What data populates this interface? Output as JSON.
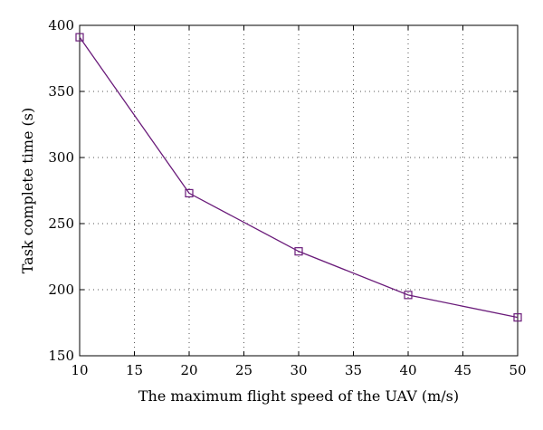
{
  "chart_data": {
    "type": "line",
    "xlabel": "The maximum flight speed of the UAV (m/s)",
    "ylabel": "Task complete time (s)",
    "xlim": [
      10,
      50
    ],
    "ylim": [
      150,
      400
    ],
    "x_ticks": [
      10,
      15,
      20,
      25,
      30,
      35,
      40,
      45,
      50
    ],
    "y_ticks": [
      150,
      200,
      250,
      300,
      350,
      400
    ],
    "x_tick_labels": [
      "10",
      "15",
      "20",
      "25",
      "30",
      "35",
      "40",
      "45",
      "50"
    ],
    "y_tick_labels": [
      "150",
      "200",
      "250",
      "300",
      "350",
      "400"
    ],
    "grid": true,
    "grid_style": "dotted",
    "series": [
      {
        "x": [
          10,
          20,
          30,
          40,
          50
        ],
        "y": [
          391,
          273,
          229,
          196,
          179
        ],
        "color": "#6a1b7a",
        "marker": "square"
      }
    ]
  }
}
